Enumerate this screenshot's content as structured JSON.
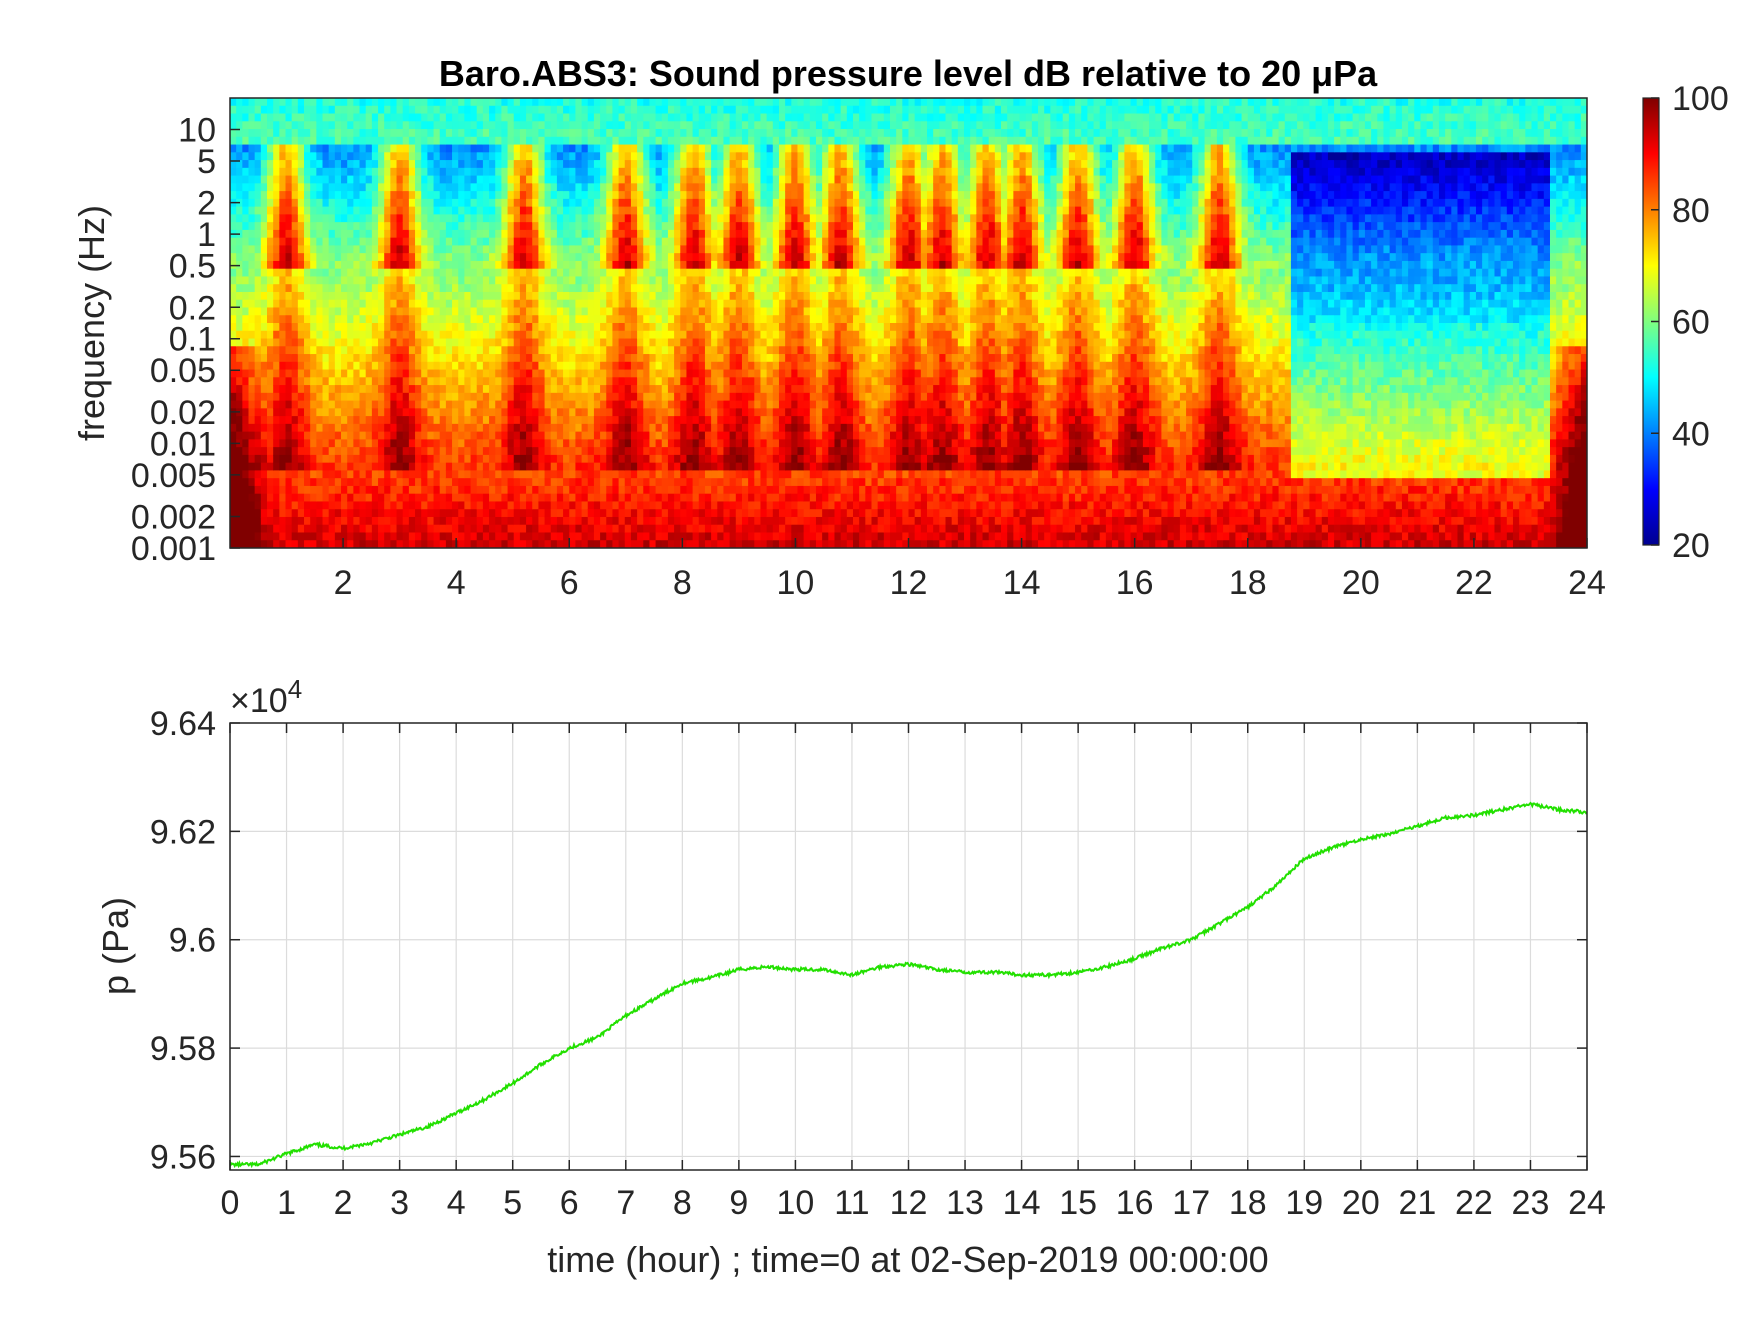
{
  "chart_data": [
    {
      "type": "heatmap",
      "title": "Baro.ABS3: Sound pressure level dB relative to 20 μPa",
      "ylabel": "frequency (Hz)",
      "xlabel": "",
      "x_range": [
        0,
        24
      ],
      "x_ticks": [
        "2",
        "4",
        "6",
        "8",
        "10",
        "12",
        "14",
        "16",
        "18",
        "20",
        "22",
        "24"
      ],
      "y_scale": "log",
      "y_range": [
        0.001,
        20
      ],
      "y_ticks": [
        "0.001",
        "0.002",
        "0.005",
        "0.01",
        "0.02",
        "0.05",
        "0.1",
        "0.2",
        "0.5",
        "1",
        "2",
        "5",
        "10"
      ],
      "colorbar": {
        "range": [
          20,
          100
        ],
        "ticks": [
          "20",
          "40",
          "60",
          "80",
          "100"
        ],
        "colormap": "jet"
      },
      "high_level_bursts_hours": [
        1.0,
        3.0,
        5.2,
        7.0,
        8.2,
        9.0,
        10.0,
        10.8,
        12.0,
        12.6,
        13.4,
        14.0,
        15.0,
        16.0,
        17.5
      ],
      "quiet_period_hours": [
        19,
        24
      ]
    },
    {
      "type": "line",
      "ylabel": "p (Pa)",
      "xlabel": "time (hour) ; time=0 at 02-Sep-2019 00:00:00",
      "exponent_label": "×10",
      "exponent_power": "4",
      "x_range": [
        0,
        24
      ],
      "x_ticks": [
        "0",
        "1",
        "2",
        "3",
        "4",
        "5",
        "6",
        "7",
        "8",
        "9",
        "10",
        "11",
        "12",
        "13",
        "14",
        "15",
        "16",
        "17",
        "18",
        "19",
        "20",
        "21",
        "22",
        "23",
        "24"
      ],
      "y_range": [
        95575,
        96400
      ],
      "y_ticks": [
        "9.56",
        "9.58",
        "9.6",
        "9.62",
        "9.64"
      ],
      "grid": true,
      "series": [
        {
          "color": "#22e000",
          "x": [
            0,
            0.5,
            1,
            1.5,
            2,
            2.5,
            3,
            3.5,
            4,
            4.5,
            5,
            5.5,
            6,
            6.5,
            7,
            7.5,
            8,
            8.5,
            9,
            9.5,
            10,
            10.5,
            11,
            11.5,
            12,
            12.5,
            13,
            13.5,
            14,
            14.5,
            15,
            15.5,
            16,
            16.5,
            17,
            17.5,
            18,
            18.5,
            19,
            19.5,
            20,
            20.5,
            21,
            21.5,
            22,
            22.5,
            23,
            23.5,
            24
          ],
          "y": [
            95585,
            95585,
            95605,
            95622,
            95615,
            95625,
            95640,
            95655,
            95680,
            95705,
            95735,
            95770,
            95800,
            95820,
            95860,
            95890,
            95920,
            95930,
            95945,
            95950,
            95945,
            95945,
            95935,
            95950,
            95955,
            95945,
            95940,
            95940,
            95935,
            95935,
            95940,
            95950,
            95965,
            95985,
            96000,
            96030,
            96060,
            96100,
            96150,
            96170,
            96185,
            96195,
            96210,
            96225,
            96230,
            96240,
            96250,
            96240,
            96235
          ]
        }
      ]
    }
  ]
}
